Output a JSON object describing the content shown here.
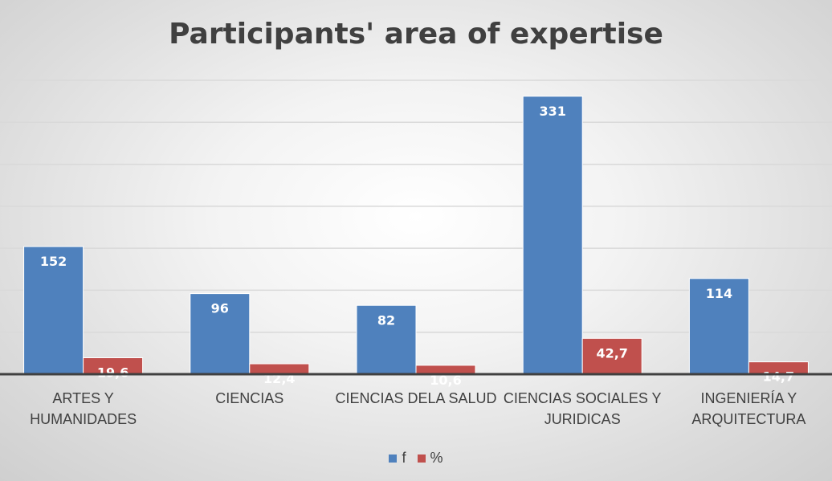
{
  "chart_data": {
    "type": "bar",
    "title": "Participants' area of expertise",
    "categories": [
      [
        "ARTES Y",
        "HUMANIDADES"
      ],
      [
        "CIENCIAS"
      ],
      [
        "CIENCIAS DELA SALUD"
      ],
      [
        "CIENCIAS SOCIALES Y",
        "JURIDICAS"
      ],
      [
        "INGENIERÍA Y",
        "ARQUITECTURA"
      ]
    ],
    "series": [
      {
        "name": "f",
        "color": "#4f81bd",
        "values": [
          152,
          96,
          82,
          331,
          114
        ],
        "labels": [
          "152",
          "96",
          "82",
          "331",
          "114"
        ]
      },
      {
        "name": "%",
        "color": "#c0504d",
        "values": [
          19.6,
          12.4,
          10.6,
          42.7,
          14.7
        ],
        "labels": [
          "19,6",
          "12,4",
          "10,6",
          "42,7",
          "14,7"
        ]
      }
    ],
    "ylim": [
      0,
      350
    ],
    "grid": true,
    "legend_position": "bottom"
  }
}
